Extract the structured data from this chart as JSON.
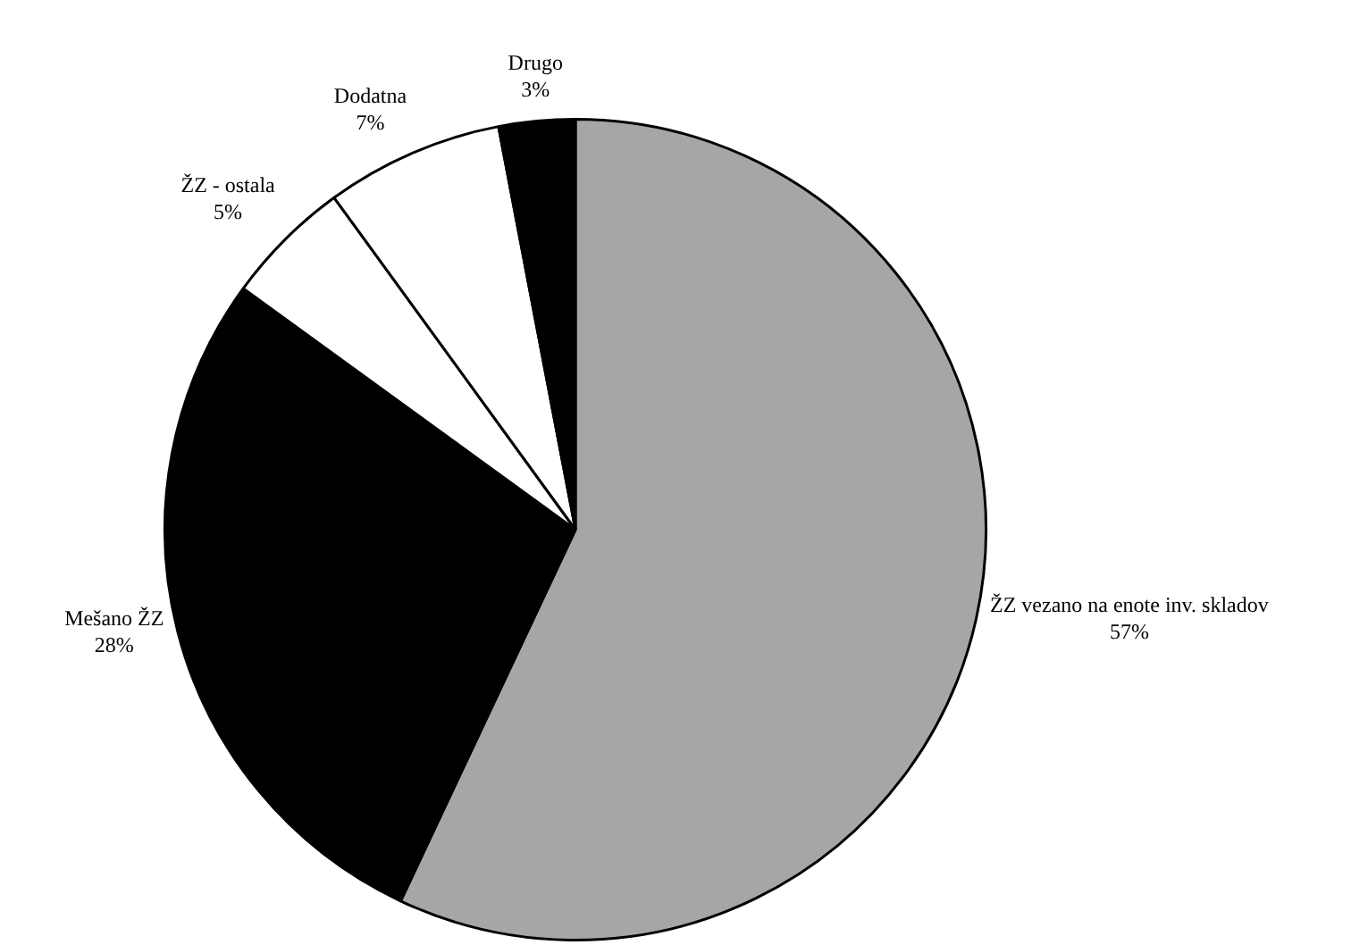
{
  "chart_data": {
    "type": "pie",
    "categories": [
      "ŽZ vezano na enote inv. skladov",
      "Mešano ŽZ",
      "ŽZ - ostala",
      "Dodatna",
      "Drugo"
    ],
    "values": [
      57,
      28,
      5,
      7,
      3
    ],
    "value_labels": [
      "57%",
      "28%",
      "5%",
      "7%",
      "3%"
    ],
    "colors": [
      "#a6a6a6",
      "#000000",
      "#ffffff",
      "#ffffff",
      "#000000"
    ],
    "legend": false
  }
}
